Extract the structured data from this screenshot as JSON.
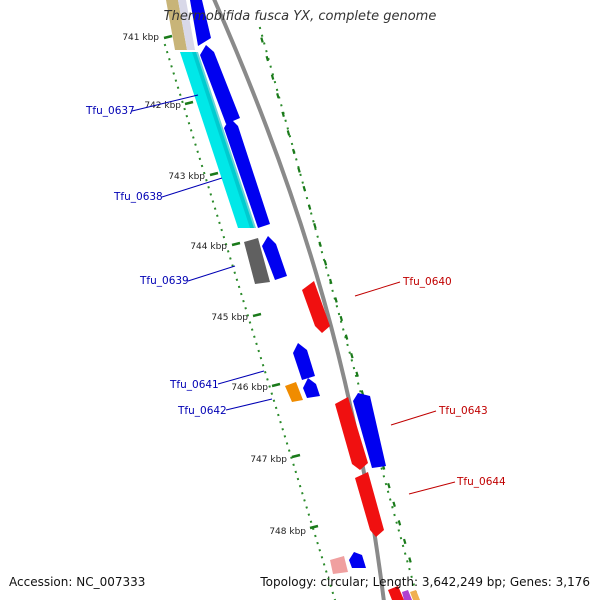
{
  "title": "Thermobifida fusca YX, complete genome",
  "footer": {
    "accession": "Accession: NC_007333",
    "summary": "Topology: circular; Length: 3,642,249 bp; Genes: 3,176"
  },
  "colors": {
    "forward_cds": "#0000f0",
    "reverse_cds": "#f01010",
    "cyan_feature": "#00e8e8",
    "gray_feature": "#606060",
    "orange_feature": "#f08c00",
    "pink_feature": "#f0a0a0",
    "tick": "#1a7a1a",
    "backbone": "#8a8a8a",
    "forward_label": "#0000b4",
    "reverse_label": "#c00000"
  },
  "kbp_ticks": [
    "741 kbp",
    "742 kbp",
    "743 kbp",
    "744 kbp",
    "745 kbp",
    "746 kbp",
    "747 kbp",
    "748 kbp"
  ],
  "genes": [
    {
      "name": "Tfu_0637",
      "strand": "forward"
    },
    {
      "name": "Tfu_0638",
      "strand": "forward"
    },
    {
      "name": "Tfu_0639",
      "strand": "forward"
    },
    {
      "name": "Tfu_0640",
      "strand": "reverse"
    },
    {
      "name": "Tfu_0641",
      "strand": "forward"
    },
    {
      "name": "Tfu_0642",
      "strand": "forward"
    },
    {
      "name": "Tfu_0643",
      "strand": "reverse"
    },
    {
      "name": "Tfu_0644",
      "strand": "reverse"
    }
  ]
}
